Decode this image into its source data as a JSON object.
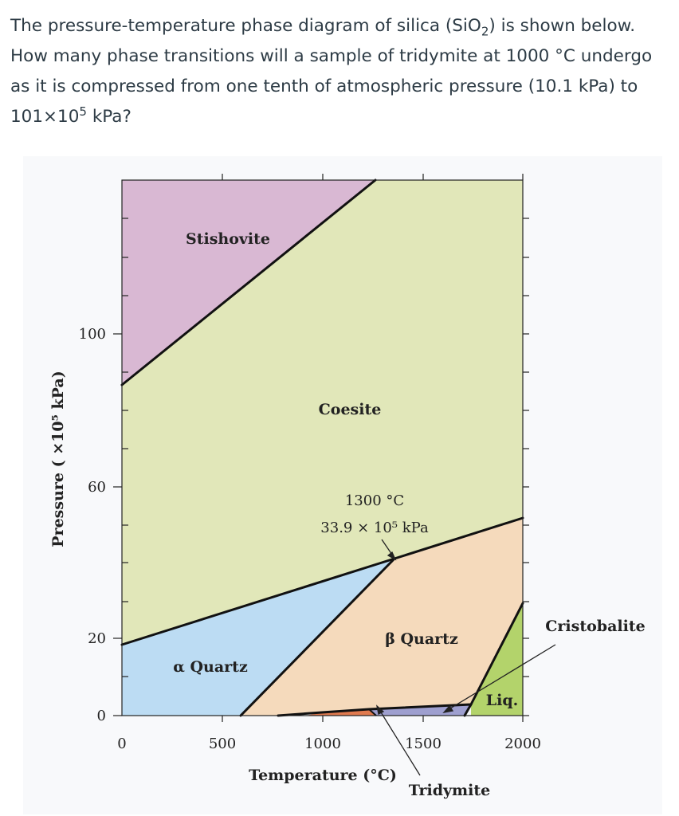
{
  "question": {
    "line1_a": "The pressure-temperature phase diagram of silica (SiO",
    "line1_sub": "2",
    "line1_b": ") is shown below.",
    "line2": "How many phase transitions will a sample of tridymite at 1000 °C undergo",
    "line3": "as it is compressed from one tenth of atmospheric pressure (10.1 kPa) to",
    "line4_a": "101×10",
    "line4_sup": "5",
    "line4_b": " kPa?"
  },
  "diagram": {
    "x_axis_label": "Temperature (°C)",
    "y_axis_label": "Pressure ( ×10⁵ kPa)",
    "x_ticks": [
      "0",
      "500",
      "1000",
      "1500",
      "2000"
    ],
    "y_ticks": [
      "0",
      "20",
      "60",
      "100"
    ],
    "phases": {
      "stishovite": "Stishovite",
      "coesite": "Coesite",
      "alpha_quartz": "α Quartz",
      "beta_quartz": "β Quartz",
      "cristobalite": "Cristobalite",
      "liquid": "Liq.",
      "tridymite": "Tridymite"
    },
    "triple_point": {
      "temperature": "1300 °C",
      "pressure": "33.9 × 10⁵ kPa"
    },
    "colors": {
      "stishovite": "#d9b8d3",
      "coesite": "#e1e7b9",
      "alpha_quartz": "#bcdcf3",
      "beta_quartz": "#f5dabc",
      "cristobalite": "#b3d36b",
      "tridymite": "#9e9fcf",
      "low_phase": "#e07a4f",
      "boundary": "#111111"
    }
  }
}
